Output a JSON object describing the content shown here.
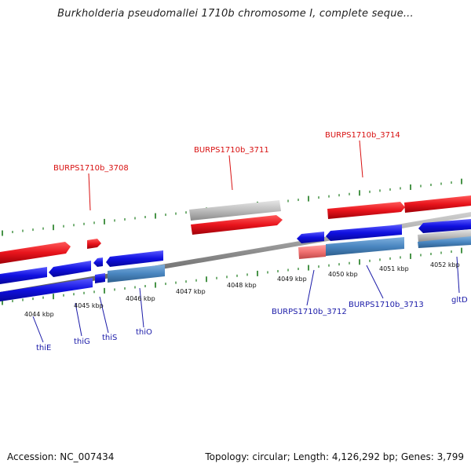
{
  "title": "Burkholderia pseudomallei 1710b chromosome I, complete seque...",
  "accession": "Accession: NC_007434",
  "summary": "Topology: circular; Length: 4,126,292 bp; Genes: 3,799",
  "colors": {
    "forward_gene": "#e8141c",
    "reverse_gene": "#1010e0",
    "pseudo_gene": "#bdbdbd",
    "reverse_rna": "#4a86c0",
    "tick": "#1a7a1a",
    "forward_label": "#d81010",
    "reverse_label": "#1a1aa8"
  },
  "scale_labels": [
    "4044 kbp",
    "4045 kbp",
    "4046 kbp",
    "4047 kbp",
    "4048 kbp",
    "4049 kbp",
    "4050 kbp",
    "4051 kbp",
    "4052 kbp"
  ],
  "forward_labels": [
    "BURPS1710b_3708",
    "BURPS1710b_3711",
    "BURPS1710b_3714"
  ],
  "reverse_labels": [
    "thiE",
    "thiG",
    "thiS",
    "thiO",
    "BURPS1710b_3712",
    "BURPS1710b_3713",
    "gltD"
  ]
}
